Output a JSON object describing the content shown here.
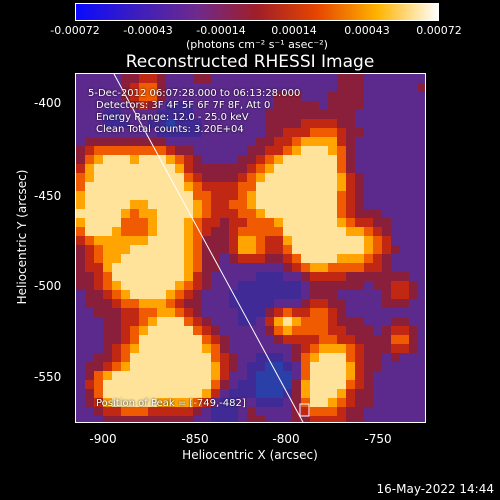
{
  "colorbar": {
    "ticks": [
      "-0.00072",
      "-0.00043",
      "-0.00014",
      "0.00014",
      "0.00043",
      "0.00072"
    ],
    "units": "(photons cm⁻² s⁻¹ asec⁻²)",
    "colors": [
      "#0a0aff",
      "#3c1ebe",
      "#6e2a8c",
      "#a01e28",
      "#e64600",
      "#ffb400",
      "#ffffff"
    ]
  },
  "plot": {
    "title": "Reconstructed RHESSI Image",
    "annotations": {
      "time_range": "5-Dec-2012 06:07:28.000 to 06:13:28.000",
      "detectors": "Detectors: 3F 4F 5F 6F 7F 8F, Att 0",
      "energy": "Energy Range: 12.0 - 25.0 keV",
      "method": "Clean    Total counts: 3.20E+04",
      "peak": "Position of Peak = [-749,-482]"
    },
    "y_ticks": [
      "-400",
      "-450",
      "-500",
      "-550"
    ],
    "x_ticks": [
      "-900",
      "-850",
      "-800",
      "-750"
    ],
    "x_label": "Heliocentric X (arcsec)",
    "y_label": "Heliocentric Y (arcsec)"
  },
  "footer": {
    "timestamp": "16-May-2022 14:44"
  }
}
